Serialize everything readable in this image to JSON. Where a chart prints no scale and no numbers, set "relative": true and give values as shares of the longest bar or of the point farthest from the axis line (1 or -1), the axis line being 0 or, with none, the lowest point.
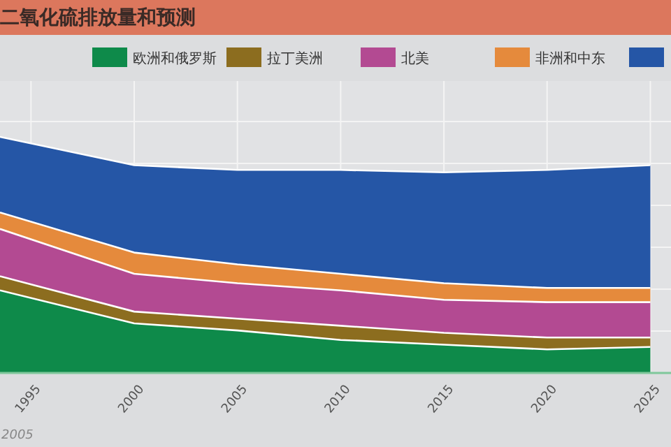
{
  "chart_data": {
    "type": "area",
    "stacked": true,
    "relative": true,
    "title": "二氧化硫排放量和预测",
    "x": [
      1993.5,
      2000,
      2005,
      2010,
      2015,
      2020,
      2025
    ],
    "xlim": [
      1993.5,
      2026
    ],
    "xticks": [
      1995,
      2000,
      2005,
      2010,
      2015,
      2020,
      2025
    ],
    "series": [
      {
        "name": "欧洲和俄罗斯",
        "color": "#0e8a4a",
        "values": [
          0.35,
          0.21,
          0.18,
          0.14,
          0.12,
          0.1,
          0.11
        ]
      },
      {
        "name": "拉丁美洲",
        "color": "#8c6d1f",
        "values": [
          0.06,
          0.05,
          0.05,
          0.06,
          0.05,
          0.05,
          0.04
        ]
      },
      {
        "name": "北美",
        "color": "#b34a92",
        "values": [
          0.2,
          0.16,
          0.15,
          0.15,
          0.14,
          0.15,
          0.15
        ]
      },
      {
        "name": "非洲和中东",
        "color": "#e58a3c",
        "values": [
          0.07,
          0.09,
          0.08,
          0.07,
          0.07,
          0.06,
          0.06
        ]
      },
      {
        "color": "#2556a6",
        "values": [
          0.32,
          0.37,
          0.4,
          0.44,
          0.47,
          0.5,
          0.52
        ]
      }
    ],
    "grid": true,
    "legend": "top",
    "annotations": [
      "2005"
    ]
  }
}
